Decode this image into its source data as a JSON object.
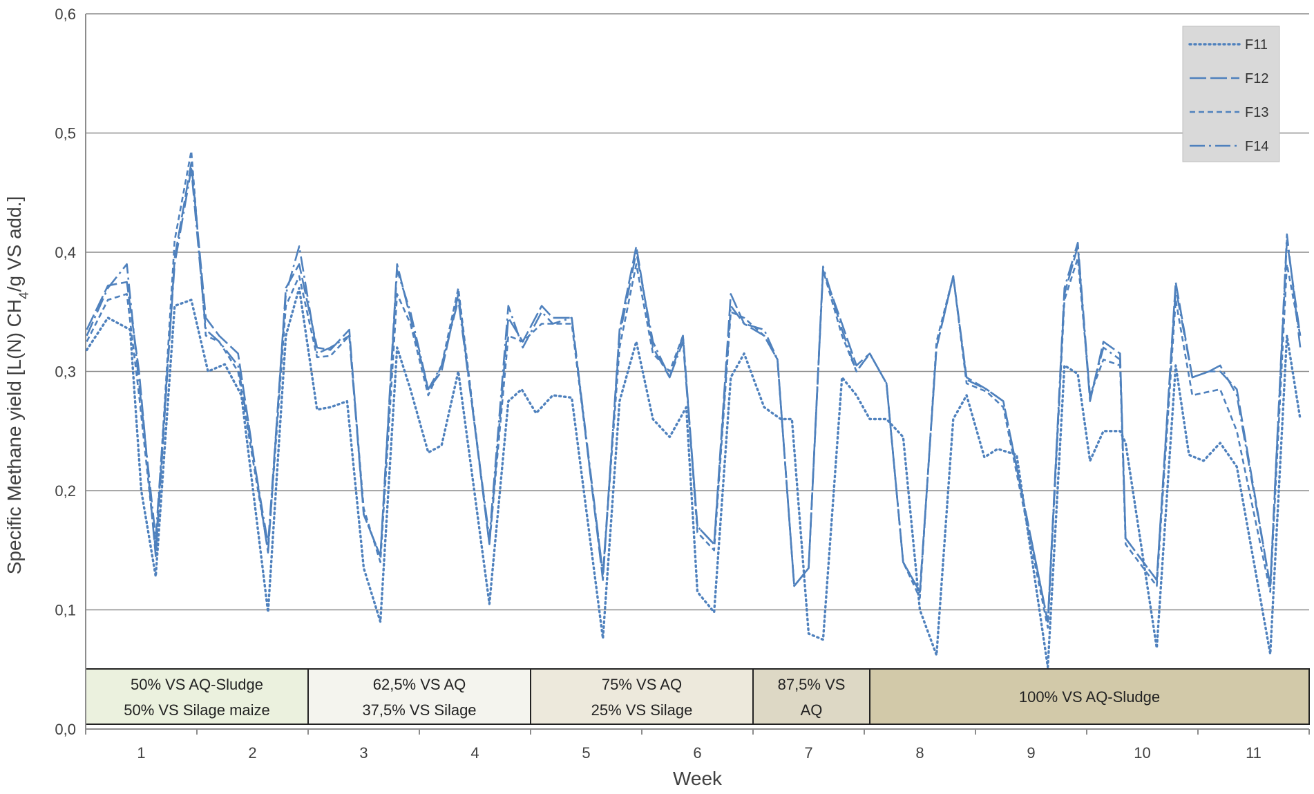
{
  "chart_data": {
    "type": "line",
    "xlabel": "Week",
    "ylabel_parts": [
      "Specific Methane yield [L(N) CH",
      "4",
      "/g VS add.]"
    ],
    "ylim": [
      0.0,
      0.6
    ],
    "xlim": [
      0.5,
      11.5
    ],
    "yticks": [
      "0,0",
      "0,1",
      "0,2",
      "0,3",
      "0,4",
      "0,5",
      "0,6"
    ],
    "ytick_values": [
      0.0,
      0.1,
      0.2,
      0.3,
      0.4,
      0.5,
      0.6
    ],
    "xticks": [
      "1",
      "2",
      "3",
      "4",
      "5",
      "6",
      "7",
      "8",
      "9",
      "10",
      "11"
    ],
    "grid": "horizontal",
    "legend": "top-right",
    "series_color": "#4f81bd",
    "phases": [
      {
        "lines": [
          "50% VS AQ-Sludge",
          "50% VS Silage maize"
        ],
        "start": 0.5,
        "end": 2.5,
        "color": "#ebf1de"
      },
      {
        "lines": [
          "62,5% VS AQ",
          "37,5% VS Silage"
        ],
        "start": 2.5,
        "end": 4.5,
        "color": "#f4f4ee"
      },
      {
        "lines": [
          "75% VS AQ",
          "25% VS Silage"
        ],
        "start": 4.5,
        "end": 6.5,
        "color": "#ede9dc"
      },
      {
        "lines": [
          "87,5% VS",
          "AQ"
        ],
        "start": 6.5,
        "end": 7.55,
        "color": "#ddd8c5"
      },
      {
        "lines": [
          "100% VS AQ-Sludge"
        ],
        "start": 7.55,
        "end": 11.5,
        "color": "#d2c9a9"
      }
    ],
    "series": [
      {
        "name": "F11",
        "dash": "dotted",
        "points": [
          [
            0.51,
            0.318
          ],
          [
            0.7,
            0.345
          ],
          [
            0.9,
            0.335
          ],
          [
            1.0,
            0.2
          ],
          [
            1.13,
            0.128
          ],
          [
            1.3,
            0.355
          ],
          [
            1.45,
            0.36
          ],
          [
            1.6,
            0.3
          ],
          [
            1.75,
            0.306
          ],
          [
            1.9,
            0.28
          ],
          [
            2.14,
            0.098
          ],
          [
            2.3,
            0.33
          ],
          [
            2.42,
            0.37
          ],
          [
            2.58,
            0.268
          ],
          [
            2.7,
            0.27
          ],
          [
            2.85,
            0.275
          ],
          [
            3.0,
            0.135
          ],
          [
            3.15,
            0.09
          ],
          [
            3.3,
            0.32
          ],
          [
            3.42,
            0.285
          ],
          [
            3.58,
            0.232
          ],
          [
            3.7,
            0.238
          ],
          [
            3.85,
            0.3
          ],
          [
            4.13,
            0.105
          ],
          [
            4.3,
            0.275
          ],
          [
            4.42,
            0.285
          ],
          [
            4.55,
            0.265
          ],
          [
            4.7,
            0.28
          ],
          [
            4.87,
            0.278
          ],
          [
            5.15,
            0.076
          ],
          [
            5.3,
            0.275
          ],
          [
            5.45,
            0.325
          ],
          [
            5.6,
            0.26
          ],
          [
            5.75,
            0.245
          ],
          [
            5.9,
            0.27
          ],
          [
            6.0,
            0.115
          ],
          [
            6.15,
            0.098
          ],
          [
            6.3,
            0.295
          ],
          [
            6.42,
            0.315
          ],
          [
            6.6,
            0.27
          ],
          [
            6.75,
            0.26
          ],
          [
            6.85,
            0.26
          ],
          [
            7.0,
            0.08
          ],
          [
            7.13,
            0.075
          ],
          [
            7.3,
            0.295
          ],
          [
            7.43,
            0.28
          ],
          [
            7.55,
            0.26
          ],
          [
            7.7,
            0.26
          ],
          [
            7.85,
            0.245
          ],
          [
            8.0,
            0.1
          ],
          [
            8.15,
            0.062
          ],
          [
            8.3,
            0.26
          ],
          [
            8.42,
            0.28
          ],
          [
            8.58,
            0.228
          ],
          [
            8.7,
            0.235
          ],
          [
            8.87,
            0.23
          ],
          [
            9.15,
            0.052
          ],
          [
            9.3,
            0.305
          ],
          [
            9.42,
            0.298
          ],
          [
            9.53,
            0.225
          ],
          [
            9.65,
            0.25
          ],
          [
            9.8,
            0.25
          ],
          [
            9.85,
            0.24
          ],
          [
            10.13,
            0.068
          ],
          [
            10.3,
            0.305
          ],
          [
            10.42,
            0.23
          ],
          [
            10.55,
            0.225
          ],
          [
            10.7,
            0.24
          ],
          [
            10.85,
            0.22
          ],
          [
            11.15,
            0.063
          ],
          [
            11.3,
            0.33
          ],
          [
            11.42,
            0.26
          ]
        ]
      },
      {
        "name": "F12",
        "dash": "long-dash",
        "points": [
          [
            0.51,
            0.335
          ],
          [
            0.7,
            0.372
          ],
          [
            0.87,
            0.375
          ],
          [
            0.98,
            0.3
          ],
          [
            1.13,
            0.145
          ],
          [
            1.3,
            0.395
          ],
          [
            1.45,
            0.475
          ],
          [
            1.58,
            0.345
          ],
          [
            1.7,
            0.33
          ],
          [
            1.87,
            0.315
          ],
          [
            2.14,
            0.148
          ],
          [
            2.3,
            0.37
          ],
          [
            2.42,
            0.39
          ],
          [
            2.58,
            0.32
          ],
          [
            2.7,
            0.318
          ],
          [
            2.87,
            0.335
          ],
          [
            3.0,
            0.18
          ],
          [
            3.15,
            0.145
          ],
          [
            3.3,
            0.39
          ],
          [
            3.42,
            0.345
          ],
          [
            3.58,
            0.285
          ],
          [
            3.7,
            0.3
          ],
          [
            3.85,
            0.365
          ],
          [
            4.13,
            0.155
          ],
          [
            4.3,
            0.345
          ],
          [
            4.43,
            0.325
          ],
          [
            4.6,
            0.355
          ],
          [
            4.7,
            0.345
          ],
          [
            4.87,
            0.345
          ],
          [
            5.15,
            0.125
          ],
          [
            5.3,
            0.335
          ],
          [
            5.45,
            0.405
          ],
          [
            5.6,
            0.32
          ],
          [
            5.75,
            0.295
          ],
          [
            5.87,
            0.33
          ],
          [
            6.0,
            0.17
          ],
          [
            6.15,
            0.155
          ],
          [
            6.3,
            0.365
          ],
          [
            6.42,
            0.34
          ],
          [
            6.6,
            0.33
          ],
          [
            6.72,
            0.31
          ],
          [
            6.87,
            0.12
          ],
          [
            7.0,
            0.135
          ],
          [
            7.13,
            0.385
          ],
          [
            7.3,
            0.34
          ],
          [
            7.43,
            0.305
          ],
          [
            7.55,
            0.315
          ],
          [
            7.7,
            0.29
          ],
          [
            7.85,
            0.14
          ],
          [
            8.0,
            0.115
          ],
          [
            8.15,
            0.32
          ],
          [
            8.3,
            0.38
          ],
          [
            8.42,
            0.295
          ],
          [
            8.6,
            0.285
          ],
          [
            8.75,
            0.275
          ],
          [
            9.15,
            0.09
          ],
          [
            9.3,
            0.365
          ],
          [
            9.42,
            0.405
          ],
          [
            9.53,
            0.275
          ],
          [
            9.65,
            0.325
          ],
          [
            9.8,
            0.315
          ],
          [
            9.85,
            0.16
          ],
          [
            10.13,
            0.125
          ],
          [
            10.3,
            0.375
          ],
          [
            10.45,
            0.295
          ],
          [
            10.6,
            0.3
          ],
          [
            10.7,
            0.3
          ],
          [
            10.85,
            0.285
          ],
          [
            11.15,
            0.12
          ],
          [
            11.3,
            0.41
          ],
          [
            11.42,
            0.33
          ]
        ]
      },
      {
        "name": "F13",
        "dash": "short-dash",
        "points": [
          [
            0.51,
            0.325
          ],
          [
            0.7,
            0.36
          ],
          [
            0.87,
            0.365
          ],
          [
            0.98,
            0.28
          ],
          [
            1.13,
            0.15
          ],
          [
            1.3,
            0.41
          ],
          [
            1.45,
            0.485
          ],
          [
            1.58,
            0.33
          ],
          [
            1.7,
            0.325
          ],
          [
            1.87,
            0.3
          ],
          [
            2.14,
            0.15
          ],
          [
            2.3,
            0.355
          ],
          [
            2.42,
            0.38
          ],
          [
            2.58,
            0.312
          ],
          [
            2.7,
            0.313
          ],
          [
            2.87,
            0.33
          ],
          [
            3.0,
            0.185
          ],
          [
            3.15,
            0.14
          ],
          [
            3.3,
            0.365
          ],
          [
            3.42,
            0.34
          ],
          [
            3.58,
            0.28
          ],
          [
            3.7,
            0.305
          ],
          [
            3.85,
            0.37
          ],
          [
            4.13,
            0.155
          ],
          [
            4.3,
            0.33
          ],
          [
            4.43,
            0.325
          ],
          [
            4.6,
            0.34
          ],
          [
            4.7,
            0.34
          ],
          [
            4.87,
            0.34
          ],
          [
            5.15,
            0.13
          ],
          [
            5.3,
            0.32
          ],
          [
            5.45,
            0.39
          ],
          [
            5.6,
            0.315
          ],
          [
            5.75,
            0.3
          ],
          [
            5.87,
            0.33
          ],
          [
            6.0,
            0.165
          ],
          [
            6.15,
            0.15
          ],
          [
            6.3,
            0.35
          ],
          [
            6.42,
            0.345
          ],
          [
            6.6,
            0.33
          ],
          [
            6.72,
            0.31
          ],
          [
            6.87,
            0.12
          ],
          [
            7.0,
            0.135
          ],
          [
            7.13,
            0.385
          ],
          [
            7.3,
            0.33
          ],
          [
            7.43,
            0.3
          ],
          [
            7.55,
            0.315
          ],
          [
            7.7,
            0.29
          ],
          [
            7.85,
            0.14
          ],
          [
            8.0,
            0.11
          ],
          [
            8.15,
            0.325
          ],
          [
            8.3,
            0.38
          ],
          [
            8.42,
            0.29
          ],
          [
            8.6,
            0.283
          ],
          [
            8.75,
            0.27
          ],
          [
            9.15,
            0.085
          ],
          [
            9.3,
            0.36
          ],
          [
            9.42,
            0.395
          ],
          [
            9.53,
            0.28
          ],
          [
            9.65,
            0.31
          ],
          [
            9.8,
            0.305
          ],
          [
            9.85,
            0.155
          ],
          [
            10.13,
            0.12
          ],
          [
            10.3,
            0.36
          ],
          [
            10.45,
            0.28
          ],
          [
            10.6,
            0.283
          ],
          [
            10.7,
            0.285
          ],
          [
            10.85,
            0.25
          ],
          [
            11.15,
            0.115
          ],
          [
            11.3,
            0.39
          ],
          [
            11.42,
            0.33
          ]
        ]
      },
      {
        "name": "F14",
        "dash": "dash-dot",
        "points": [
          [
            0.51,
            0.33
          ],
          [
            0.7,
            0.37
          ],
          [
            0.87,
            0.39
          ],
          [
            0.98,
            0.29
          ],
          [
            1.13,
            0.16
          ],
          [
            1.3,
            0.39
          ],
          [
            1.45,
            0.47
          ],
          [
            1.58,
            0.335
          ],
          [
            1.7,
            0.325
          ],
          [
            1.87,
            0.305
          ],
          [
            2.14,
            0.155
          ],
          [
            2.3,
            0.365
          ],
          [
            2.42,
            0.405
          ],
          [
            2.58,
            0.315
          ],
          [
            2.7,
            0.32
          ],
          [
            2.87,
            0.33
          ],
          [
            3.0,
            0.18
          ],
          [
            3.15,
            0.145
          ],
          [
            3.3,
            0.385
          ],
          [
            3.42,
            0.35
          ],
          [
            3.58,
            0.285
          ],
          [
            3.7,
            0.305
          ],
          [
            3.85,
            0.36
          ],
          [
            4.13,
            0.16
          ],
          [
            4.3,
            0.355
          ],
          [
            4.43,
            0.32
          ],
          [
            4.6,
            0.35
          ],
          [
            4.7,
            0.34
          ],
          [
            4.87,
            0.345
          ],
          [
            5.15,
            0.13
          ],
          [
            5.3,
            0.33
          ],
          [
            5.45,
            0.4
          ],
          [
            5.6,
            0.325
          ],
          [
            5.75,
            0.295
          ],
          [
            5.87,
            0.325
          ],
          [
            6.0,
            0.17
          ],
          [
            6.15,
            0.155
          ],
          [
            6.3,
            0.355
          ],
          [
            6.42,
            0.34
          ],
          [
            6.6,
            0.335
          ],
          [
            6.72,
            0.31
          ],
          [
            6.87,
            0.12
          ],
          [
            7.0,
            0.135
          ],
          [
            7.13,
            0.388
          ],
          [
            7.3,
            0.335
          ],
          [
            7.43,
            0.3
          ],
          [
            7.55,
            0.315
          ],
          [
            7.7,
            0.29
          ],
          [
            7.85,
            0.14
          ],
          [
            8.0,
            0.115
          ],
          [
            8.15,
            0.32
          ],
          [
            8.3,
            0.38
          ],
          [
            8.42,
            0.293
          ],
          [
            8.6,
            0.285
          ],
          [
            8.75,
            0.275
          ],
          [
            9.15,
            0.09
          ],
          [
            9.3,
            0.37
          ],
          [
            9.42,
            0.408
          ],
          [
            9.53,
            0.278
          ],
          [
            9.65,
            0.32
          ],
          [
            9.8,
            0.31
          ],
          [
            9.85,
            0.16
          ],
          [
            10.13,
            0.125
          ],
          [
            10.3,
            0.37
          ],
          [
            10.45,
            0.295
          ],
          [
            10.6,
            0.3
          ],
          [
            10.7,
            0.305
          ],
          [
            10.85,
            0.28
          ],
          [
            11.15,
            0.12
          ],
          [
            11.3,
            0.415
          ],
          [
            11.42,
            0.32
          ]
        ]
      }
    ]
  }
}
